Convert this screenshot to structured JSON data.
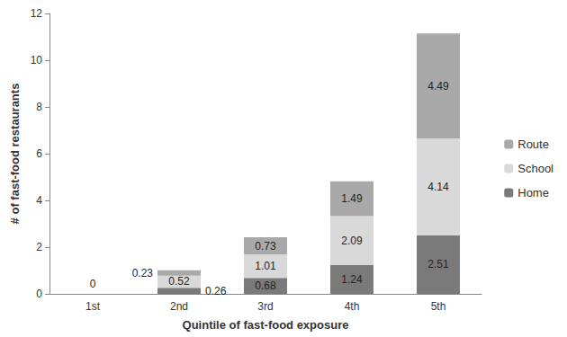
{
  "chart_data": {
    "type": "bar",
    "stacked": true,
    "data_labels": true,
    "grid": false,
    "legend": "right",
    "xlabel": "Quintile of fast-food exposure",
    "ylabel": "# of fast-food restaurants",
    "categories": [
      "1st",
      "2nd",
      "3rd",
      "4th",
      "5th"
    ],
    "series": [
      {
        "name": "Home",
        "color": "#7a7a7a",
        "values": [
          0,
          0.26,
          0.68,
          1.24,
          2.51
        ]
      },
      {
        "name": "School",
        "color": "#d9d9d9",
        "values": [
          0,
          0.52,
          1.01,
          2.09,
          4.14
        ]
      },
      {
        "name": "Route",
        "color": "#a9a9a9",
        "values": [
          0,
          0.23,
          0.73,
          1.49,
          4.49
        ]
      }
    ],
    "ylim": [
      0,
      12
    ],
    "yticks": [
      0,
      2,
      4,
      6,
      8,
      10,
      12
    ]
  }
}
